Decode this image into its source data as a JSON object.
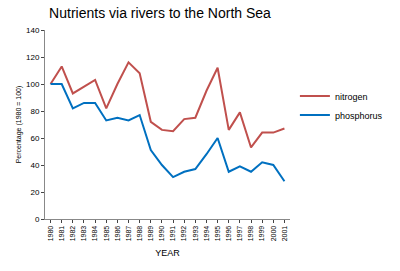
{
  "chart_data": {
    "type": "line",
    "title": "Nutrients via rivers to the North Sea",
    "x_label": "YEAR",
    "y_label": "Percentage (1980 = 100)",
    "categories": [
      "1980",
      "1981",
      "1982",
      "1983",
      "1984",
      "1985",
      "1986",
      "1987",
      "1988",
      "1989",
      "1990",
      "1991",
      "1992",
      "1993",
      "1994",
      "1995",
      "1996",
      "1997",
      "1998",
      "1999",
      "2000",
      "2001"
    ],
    "series": [
      {
        "name": "nitrogen",
        "color": "#c0504d",
        "values": [
          100,
          113,
          93,
          98,
          103,
          82,
          100,
          116,
          108,
          72,
          66,
          65,
          74,
          75,
          95,
          112,
          66,
          79,
          53,
          64,
          64,
          67
        ]
      },
      {
        "name": "phosphorus",
        "color": "#0070c0",
        "values": [
          100,
          100,
          82,
          86,
          86,
          73,
          75,
          73,
          77,
          51,
          40,
          31,
          35,
          37,
          48,
          60,
          35,
          39,
          35,
          42,
          40,
          28
        ]
      }
    ],
    "ylim": [
      0,
      140
    ],
    "yticks": [
      0,
      20,
      40,
      60,
      80,
      100,
      120,
      140
    ],
    "grid": false,
    "legend": "right"
  }
}
